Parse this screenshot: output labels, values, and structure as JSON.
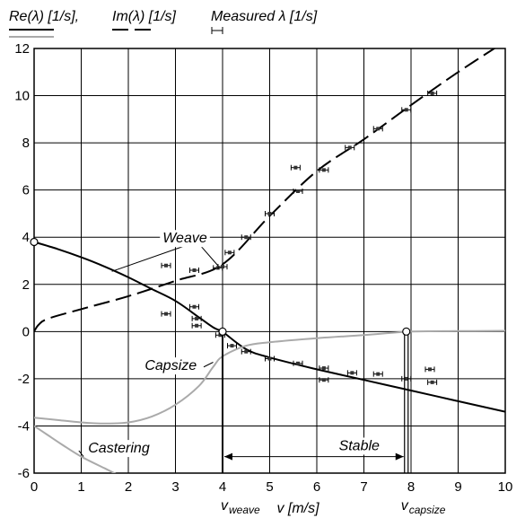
{
  "chart_data": {
    "type": "line",
    "legend": {
      "placement": "top",
      "items": [
        {
          "label": "Re(λ) [1/s],",
          "style": "solid-black-over-gray"
        },
        {
          "label": "Im(λ) [1/s]",
          "style": "dashed-black"
        },
        {
          "label": "Measured λ [1/s]",
          "style": "error-bar"
        }
      ]
    },
    "xlabel": "v  [m/s]",
    "xlim": [
      0,
      10
    ],
    "ylim": [
      -6,
      12
    ],
    "xticks": [
      0,
      1,
      2,
      3,
      4,
      5,
      6,
      7,
      8,
      9,
      10
    ],
    "yticks": [
      -6,
      -4,
      -2,
      0,
      2,
      4,
      6,
      8,
      10,
      12
    ],
    "grid": true,
    "series": [
      {
        "name": "Weave",
        "kind": "real",
        "color": "#000000",
        "x": [
          0,
          0.5,
          1,
          1.5,
          2,
          2.5,
          3,
          3.5,
          3.8,
          4.0
        ],
        "y": [
          3.8,
          3.5,
          3.15,
          2.75,
          2.3,
          1.8,
          1.3,
          0.6,
          0.18,
          0.0
        ]
      },
      {
        "name": "Weave",
        "kind": "real-stable",
        "color": "#000000",
        "x": [
          4.0,
          4.5,
          5,
          6,
          7,
          8,
          9,
          10
        ],
        "y": [
          0.0,
          -0.75,
          -1.1,
          -1.6,
          -2.05,
          -2.5,
          -2.95,
          -3.4
        ]
      },
      {
        "name": "",
        "kind": "imaginary",
        "color": "#000000",
        "x": [
          0,
          0.1,
          0.3,
          1,
          2,
          3,
          4,
          5,
          6,
          7,
          8,
          9,
          10
        ],
        "y": [
          0,
          0.3,
          0.55,
          0.95,
          1.5,
          2.15,
          2.85,
          4.9,
          6.8,
          8.15,
          9.6,
          11.0,
          12.3
        ]
      },
      {
        "name": "Capsize",
        "kind": "real",
        "color": "#aaaaaa",
        "x": [
          0,
          0.5,
          1,
          1.5,
          2,
          2.5,
          3,
          3.5,
          3.8,
          4,
          4.5,
          5,
          6,
          7,
          8,
          9,
          10
        ],
        "y": [
          -3.65,
          -3.75,
          -3.85,
          -3.9,
          -3.85,
          -3.6,
          -3.1,
          -2.3,
          -1.5,
          -1.05,
          -0.6,
          -0.45,
          -0.28,
          -0.15,
          0.0,
          0.02,
          0.03
        ]
      },
      {
        "name": "Castering",
        "kind": "real",
        "color": "#aaaaaa",
        "x": [
          0,
          0.3,
          0.6,
          1,
          1.5,
          2
        ],
        "y": [
          -4.0,
          -4.4,
          -4.8,
          -5.3,
          -5.8,
          -6.3
        ]
      }
    ],
    "measured": [
      {
        "x": 2.8,
        "y": 2.8
      },
      {
        "x": 2.8,
        "y": 0.75
      },
      {
        "x": 3.4,
        "y": 2.6
      },
      {
        "x": 3.4,
        "y": 1.05
      },
      {
        "x": 3.45,
        "y": 0.55
      },
      {
        "x": 3.45,
        "y": 0.25
      },
      {
        "x": 3.9,
        "y": 2.7
      },
      {
        "x": 4.0,
        "y": 2.75
      },
      {
        "x": 3.95,
        "y": -0.15
      },
      {
        "x": 4.15,
        "y": 3.35
      },
      {
        "x": 4.2,
        "y": -0.6
      },
      {
        "x": 4.5,
        "y": 4.0
      },
      {
        "x": 4.5,
        "y": -0.85
      },
      {
        "x": 5.0,
        "y": 5.0
      },
      {
        "x": 5.0,
        "y": -1.15
      },
      {
        "x": 5.55,
        "y": 6.95
      },
      {
        "x": 5.6,
        "y": 5.95
      },
      {
        "x": 5.6,
        "y": -1.35
      },
      {
        "x": 6.15,
        "y": 6.85
      },
      {
        "x": 6.15,
        "y": -1.55
      },
      {
        "x": 6.15,
        "y": -2.05
      },
      {
        "x": 6.7,
        "y": 7.8
      },
      {
        "x": 6.75,
        "y": -1.75
      },
      {
        "x": 7.3,
        "y": 8.6
      },
      {
        "x": 7.3,
        "y": -1.8
      },
      {
        "x": 7.9,
        "y": 9.4
      },
      {
        "x": 7.9,
        "y": -2.0
      },
      {
        "x": 8.45,
        "y": 10.1
      },
      {
        "x": 8.4,
        "y": -1.6
      },
      {
        "x": 8.45,
        "y": -2.15
      }
    ],
    "markers": [
      {
        "x": 0,
        "y": 3.8
      },
      {
        "x": 4.0,
        "y": 0.0
      },
      {
        "x": 7.9,
        "y": 0.0
      }
    ],
    "annotations": [
      {
        "text": "Weave",
        "x": 3.2,
        "y": 4.0
      },
      {
        "text": "Capsize",
        "x": 2.9,
        "y": -1.4
      },
      {
        "text": "Castering",
        "x": 1.8,
        "y": -4.9
      },
      {
        "text": "Stable",
        "x": 6.9,
        "y": -4.8
      }
    ],
    "stable_range": [
      4.0,
      7.9
    ],
    "vlines": [
      {
        "x": 4.0,
        "label_main": "v",
        "label_sub": "weave"
      },
      {
        "x": 7.9,
        "label_main": "v",
        "label_sub": "capsize"
      }
    ]
  }
}
